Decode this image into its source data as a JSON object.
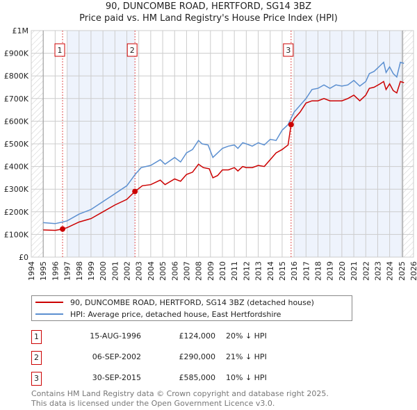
{
  "title": "90, DUNCOMBE ROAD, HERTFORD, SG14 3BZ",
  "subtitle": "Price paid vs. HM Land Registry's House Price Index (HPI)",
  "chart_data": {
    "type": "line",
    "title": "90, DUNCOMBE ROAD, HERTFORD, SG14 3BZ",
    "subtitle": "Price paid vs. HM Land Registry's House Price Index (HPI)",
    "xlim": [
      1994,
      2026
    ],
    "ylim": [
      0,
      1000000
    ],
    "x_ticks": [
      "1994",
      "1995",
      "1996",
      "1997",
      "1998",
      "1999",
      "2000",
      "2001",
      "2002",
      "2003",
      "2004",
      "2005",
      "2006",
      "2007",
      "2008",
      "2009",
      "2010",
      "2011",
      "2012",
      "2013",
      "2014",
      "2015",
      "2016",
      "2017",
      "2018",
      "2019",
      "2020",
      "2021",
      "2022",
      "2023",
      "2024",
      "2025",
      "2026"
    ],
    "y_ticks": [
      {
        "v": 0,
        "label": "£0"
      },
      {
        "v": 100,
        "label": "£100K"
      },
      {
        "v": 200,
        "label": "£200K"
      },
      {
        "v": 300,
        "label": "£300K"
      },
      {
        "v": 400,
        "label": "£400K"
      },
      {
        "v": 500,
        "label": "£500K"
      },
      {
        "v": 600,
        "label": "£600K"
      },
      {
        "v": 700,
        "label": "£700K"
      },
      {
        "v": 800,
        "label": "£800K"
      },
      {
        "v": 900,
        "label": "£900K"
      },
      {
        "v": 1000,
        "label": "£1M"
      }
    ],
    "y_unit": "thousands GBP",
    "grid": true,
    "legend_placement": "below",
    "series": [
      {
        "name": "90, DUNCOMBE ROAD, HERTFORD, SG14 3BZ (detached house)",
        "color": "#cc0000",
        "x": [
          1995,
          1996,
          1996.62,
          1997,
          1998,
          1999,
          2000,
          2001,
          2002,
          2002.68,
          2003.3,
          2004,
          2004.8,
          2005.2,
          2006,
          2006.5,
          2007,
          2007.5,
          2008,
          2008.4,
          2008.9,
          2009.2,
          2009.6,
          2010,
          2010.5,
          2011,
          2011.3,
          2011.7,
          2012,
          2012.5,
          2013,
          2013.5,
          2014,
          2014.5,
          2015,
          2015.5,
          2015.75,
          2016,
          2016.5,
          2017,
          2017.5,
          2018,
          2018.5,
          2019,
          2019.5,
          2020,
          2020.5,
          2021,
          2021.5,
          2022,
          2022.3,
          2022.7,
          2023.2,
          2023.5,
          2023.7,
          2024,
          2024.3,
          2024.6,
          2024.9,
          2025.2
        ],
        "y": [
          120,
          118,
          124,
          130,
          155,
          170,
          200,
          230,
          255,
          290,
          315,
          320,
          340,
          320,
          345,
          335,
          365,
          375,
          410,
          395,
          390,
          350,
          360,
          385,
          385,
          395,
          380,
          400,
          395,
          395,
          405,
          400,
          430,
          460,
          475,
          495,
          585,
          610,
          640,
          680,
          690,
          690,
          700,
          690,
          690,
          690,
          700,
          715,
          690,
          715,
          745,
          750,
          765,
          775,
          740,
          765,
          735,
          725,
          775,
          770
        ]
      },
      {
        "name": "HPI: Average price, detached house, East Hertfordshire",
        "color": "#5b8fd0",
        "x": [
          1995,
          1996,
          1996.62,
          1997,
          1998,
          1999,
          2000,
          2001,
          2002,
          2002.7,
          2003.2,
          2004,
          2004.8,
          2005.2,
          2006,
          2006.5,
          2007,
          2007.5,
          2008,
          2008.3,
          2008.8,
          2009.2,
          2009.5,
          2010,
          2010.5,
          2011,
          2011.3,
          2011.7,
          2012,
          2012.5,
          2013,
          2013.5,
          2014,
          2014.5,
          2015,
          2015.5,
          2016,
          2016.5,
          2017,
          2017.5,
          2018,
          2018.5,
          2019,
          2019.5,
          2020,
          2020.5,
          2021,
          2021.5,
          2022,
          2022.3,
          2022.7,
          2023.2,
          2023.5,
          2023.7,
          2024,
          2024.3,
          2024.6,
          2024.9,
          2025.2
        ],
        "y": [
          152,
          148,
          155,
          160,
          190,
          210,
          245,
          280,
          315,
          365,
          395,
          405,
          430,
          410,
          440,
          420,
          460,
          475,
          515,
          500,
          495,
          440,
          455,
          480,
          490,
          495,
          480,
          505,
          500,
          490,
          505,
          495,
          520,
          515,
          560,
          585,
          640,
          670,
          700,
          740,
          745,
          760,
          745,
          760,
          755,
          760,
          780,
          755,
          775,
          810,
          820,
          845,
          860,
          815,
          840,
          810,
          795,
          860,
          855
        ]
      }
    ],
    "sales": [
      {
        "n": "1",
        "x": 1996.62,
        "y": 124,
        "date": "15-AUG-1996",
        "price": "£124,000",
        "hpi": "20% ↓ HPI"
      },
      {
        "n": "2",
        "x": 2002.68,
        "y": 290,
        "date": "06-SEP-2002",
        "price": "£290,000",
        "hpi": "21% ↓ HPI"
      },
      {
        "n": "3",
        "x": 2015.75,
        "y": 585,
        "date": "30-SEP-2015",
        "price": "£585,000",
        "hpi": "10% ↓ HPI"
      }
    ],
    "shaded_ranges": [
      [
        1997,
        2002.68
      ],
      [
        2016,
        2025.1
      ]
    ],
    "hatched_ranges": [
      [
        1994,
        1995
      ],
      [
        2025.1,
        2026
      ]
    ]
  },
  "legend": {
    "red": "90, DUNCOMBE ROAD, HERTFORD, SG14 3BZ (detached house)",
    "blue": "HPI: Average price, detached house, East Hertfordshire"
  },
  "footer": {
    "line1": "Contains HM Land Registry data © Crown copyright and database right 2025.",
    "line2": "This data is licensed under the Open Government Licence v3.0."
  }
}
